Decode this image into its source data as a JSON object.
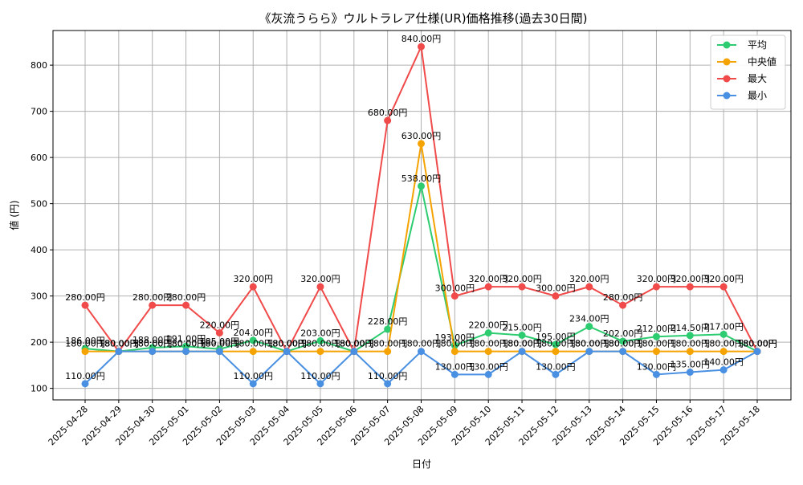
{
  "chart_data": {
    "type": "line",
    "title": "《灰流うらら》ウルトラレア仕様(UR)価格推移(過去30日間)",
    "xlabel": "日付",
    "ylabel": "値 (円)",
    "ylim": [
      75,
      875
    ],
    "yticks": [
      100,
      200,
      300,
      400,
      500,
      600,
      700,
      800
    ],
    "grid": true,
    "legend_position": "top-right",
    "value_suffix": "円",
    "categories": [
      "2025-04-28",
      "2025-04-29",
      "2025-04-30",
      "2025-05-01",
      "2025-05-02",
      "2025-05-03",
      "2025-05-04",
      "2025-05-05",
      "2025-05-06",
      "2025-05-07",
      "2025-05-08",
      "2025-05-09",
      "2025-05-10",
      "2025-05-11",
      "2025-05-12",
      "2025-05-13",
      "2025-05-14",
      "2025-05-15",
      "2025-05-16",
      "2025-05-17",
      "2025-05-18"
    ],
    "series": [
      {
        "name": "平均",
        "color": "#2ecc71",
        "values": [
          186,
          180,
          188,
          191,
          185,
          204,
          180,
          203,
          180,
          228,
          538,
          193,
          220,
          215,
          195,
          234,
          202,
          212,
          214.5,
          217,
          180
        ]
      },
      {
        "name": "中央値",
        "color": "#f5a300",
        "values": [
          180,
          180,
          180,
          180,
          180,
          180,
          180,
          180,
          180,
          180,
          630,
          180,
          180,
          180,
          180,
          180,
          180,
          180,
          180,
          180,
          180
        ]
      },
      {
        "name": "最大",
        "color": "#f04a4a",
        "values": [
          280,
          180,
          280,
          280,
          220,
          320,
          180,
          320,
          180,
          680,
          840,
          300,
          320,
          320,
          300,
          320,
          280,
          320,
          320,
          320,
          180
        ]
      },
      {
        "name": "最小",
        "color": "#4a90e2",
        "values": [
          110,
          180,
          180,
          180,
          180,
          110,
          180,
          110,
          180,
          110,
          180,
          130,
          130,
          180,
          130,
          180,
          180,
          130,
          135,
          140,
          180
        ]
      }
    ]
  }
}
